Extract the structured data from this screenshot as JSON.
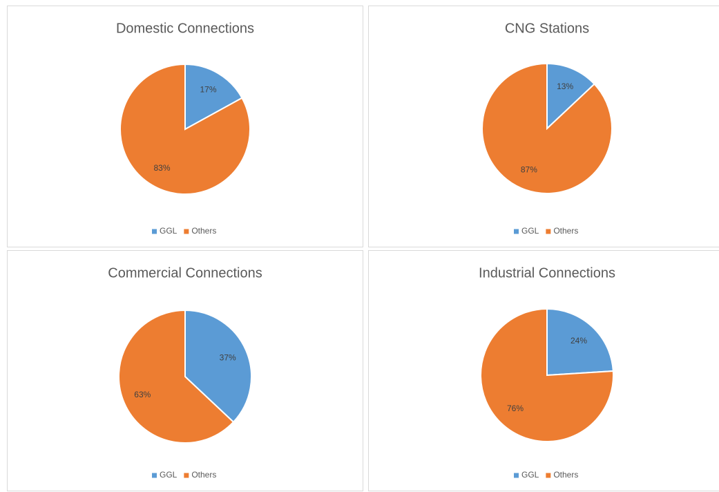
{
  "chart_data": [
    {
      "type": "pie",
      "title": "Domestic Connections",
      "categories": [
        "GGL",
        "Others"
      ],
      "values": [
        17,
        83
      ],
      "value_labels": [
        "17%",
        "83%"
      ],
      "colors": [
        "#5b9bd5",
        "#ed7d31"
      ]
    },
    {
      "type": "pie",
      "title": "CNG Stations",
      "categories": [
        "GGL",
        "Others"
      ],
      "values": [
        13,
        87
      ],
      "value_labels": [
        "13%",
        "87%"
      ],
      "colors": [
        "#5b9bd5",
        "#ed7d31"
      ]
    },
    {
      "type": "pie",
      "title": "Commercial Connections",
      "categories": [
        "GGL",
        "Others"
      ],
      "values": [
        37,
        63
      ],
      "value_labels": [
        "37%",
        "63%"
      ],
      "colors": [
        "#5b9bd5",
        "#ed7d31"
      ]
    },
    {
      "type": "pie",
      "title": "Industrial Connections",
      "categories": [
        "GGL",
        "Others"
      ],
      "values": [
        24,
        76
      ],
      "value_labels": [
        "24%",
        "76%"
      ],
      "colors": [
        "#5b9bd5",
        "#ed7d31"
      ]
    }
  ]
}
